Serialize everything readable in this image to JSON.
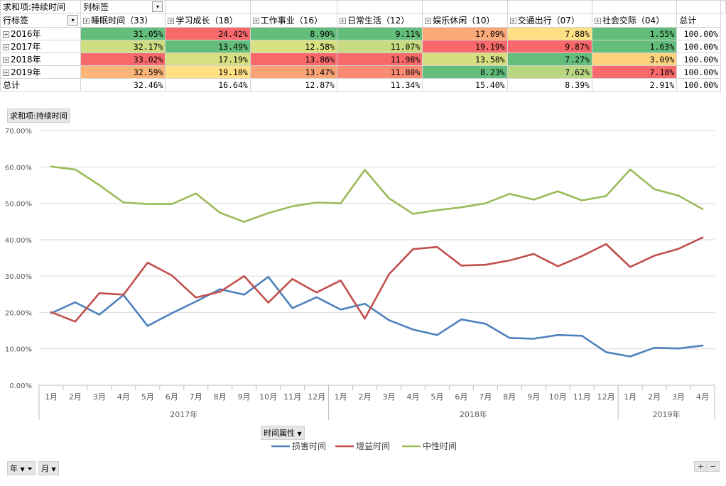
{
  "pivot": {
    "corner_label": "求和项:持续时间",
    "col_label": "列标签",
    "row_label": "行标签",
    "total_label": "总计",
    "columns": [
      "睡眠时间（33）",
      "学习成长（18）",
      "工作事业（16）",
      "日常生活（12）",
      "娱乐休闲（10）",
      "交通出行（07）",
      "社会交际（04）"
    ],
    "rows": [
      {
        "label": "2016年",
        "cells": [
          "31.05%",
          "24.42%",
          "8.90%",
          "9.11%",
          "17.09%",
          "7.88%",
          "1.55%"
        ],
        "total": "100.00%",
        "colors": [
          "#63be7b",
          "#f8696b",
          "#63be7b",
          "#63be7b",
          "#fbaa77",
          "#ffe084",
          "#63be7b"
        ]
      },
      {
        "label": "2017年",
        "cells": [
          "32.17%",
          "13.49%",
          "12.58%",
          "11.07%",
          "19.19%",
          "9.87%",
          "1.63%"
        ],
        "total": "100.00%",
        "colors": [
          "#cddd82",
          "#63be7b",
          "#d9e081",
          "#c9db80",
          "#f8696b",
          "#f8696b",
          "#63be7b"
        ]
      },
      {
        "label": "2018年",
        "cells": [
          "33.02%",
          "17.19%",
          "13.86%",
          "11.98%",
          "13.58%",
          "7.27%",
          "3.09%"
        ],
        "total": "100.00%",
        "colors": [
          "#f8696b",
          "#d6df81",
          "#f8696b",
          "#f8696b",
          "#d5df81",
          "#63be7b",
          "#fdd27f"
        ]
      },
      {
        "label": "2019年",
        "cells": [
          "32.59%",
          "19.10%",
          "13.47%",
          "11.80%",
          "8.23%",
          "7.62%",
          "7.18%"
        ],
        "total": "100.00%",
        "colors": [
          "#fcb478",
          "#ffe084",
          "#fba276",
          "#fa8b72",
          "#63be7b",
          "#b9d680",
          "#f8696b"
        ]
      }
    ],
    "total_row": {
      "label": "总计",
      "cells": [
        "32.46%",
        "16.64%",
        "12.87%",
        "11.34%",
        "15.40%",
        "8.39%",
        "2.91%"
      ],
      "total": "100.00%"
    }
  },
  "chart_field_button": "求和项:持续时间",
  "axis_field_button": "时间属性",
  "filter_buttons": [
    "年",
    "月"
  ],
  "zoom_buttons": [
    "+",
    "−"
  ],
  "chart_data": {
    "type": "line",
    "y_ticks": [
      "0.00%",
      "10.00%",
      "20.00%",
      "30.00%",
      "40.00%",
      "50.00%",
      "60.00%",
      "70.00%"
    ],
    "ylim": [
      0,
      70
    ],
    "x": [
      "1月",
      "2月",
      "3月",
      "4月",
      "5月",
      "6月",
      "7月",
      "8月",
      "9月",
      "10月",
      "11月",
      "12月",
      "1月",
      "2月",
      "3月",
      "4月",
      "5月",
      "6月",
      "7月",
      "8月",
      "9月",
      "10月",
      "11月",
      "12月",
      "1月",
      "2月",
      "3月",
      "4月"
    ],
    "groups": [
      {
        "label": "2017年",
        "count": 12
      },
      {
        "label": "2018年",
        "count": 12
      },
      {
        "label": "2019年",
        "count": 4
      }
    ],
    "series": [
      {
        "name": "损害时间",
        "color": "#4f81bd",
        "values": [
          19.8,
          22.8,
          19.4,
          24.8,
          16.3,
          19.8,
          23.0,
          26.4,
          24.9,
          29.8,
          21.2,
          24.2,
          20.8,
          22.4,
          17.9,
          15.3,
          13.8,
          18.1,
          16.9,
          13.0,
          12.8,
          13.8,
          13.6,
          9.1,
          7.9,
          10.3,
          10.1,
          10.9
        ]
      },
      {
        "name": "增益时间",
        "color": "#c0504d",
        "values": [
          20.1,
          17.5,
          25.3,
          24.9,
          33.7,
          30.2,
          24.1,
          25.7,
          30.0,
          22.7,
          29.2,
          25.5,
          28.8,
          18.3,
          30.5,
          37.4,
          38.0,
          32.9,
          33.1,
          34.3,
          36.1,
          32.7,
          35.5,
          38.8,
          32.5,
          35.6,
          37.5,
          40.6
        ]
      },
      {
        "name": "中性时间",
        "color": "#9bbb59",
        "values": [
          60.1,
          59.3,
          55.0,
          50.2,
          49.8,
          49.8,
          52.7,
          47.4,
          44.9,
          47.3,
          49.2,
          50.2,
          50.0,
          59.2,
          51.4,
          47.1,
          48.1,
          48.9,
          50.0,
          52.6,
          51.0,
          53.3,
          50.8,
          52.0,
          59.3,
          53.9,
          52.1,
          48.4
        ]
      }
    ]
  }
}
